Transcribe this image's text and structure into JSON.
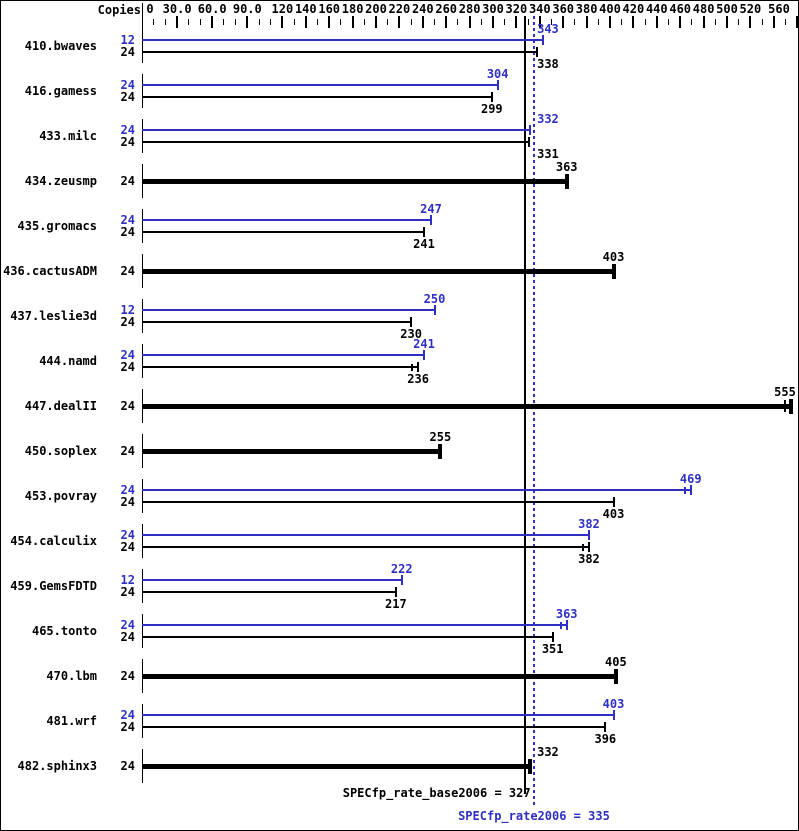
{
  "copies_header": "Copies",
  "colors": {
    "peak": "#2f2fc3",
    "base": "#000000",
    "background": "#ffffff",
    "border": "#000000"
  },
  "chart_data": {
    "type": "bar",
    "orientation": "horizontal",
    "axis": {
      "position": "top",
      "min": 0,
      "max": 560,
      "minor_tick_step": 10,
      "tick_labels": [
        {
          "v": 0,
          "text": "0"
        },
        {
          "v": 30,
          "text": "30.0"
        },
        {
          "v": 60,
          "text": "60.0"
        },
        {
          "v": 90,
          "text": "90.0"
        },
        {
          "v": 120,
          "text": "120"
        },
        {
          "v": 140,
          "text": "140"
        },
        {
          "v": 160,
          "text": "160"
        },
        {
          "v": 180,
          "text": "180"
        },
        {
          "v": 200,
          "text": "200"
        },
        {
          "v": 220,
          "text": "220"
        },
        {
          "v": 240,
          "text": "240"
        },
        {
          "v": 260,
          "text": "260"
        },
        {
          "v": 280,
          "text": "280"
        },
        {
          "v": 300,
          "text": "300"
        },
        {
          "v": 320,
          "text": "320"
        },
        {
          "v": 340,
          "text": "340"
        },
        {
          "v": 360,
          "text": "360"
        },
        {
          "v": 380,
          "text": "380"
        },
        {
          "v": 400,
          "text": "400"
        },
        {
          "v": 420,
          "text": "420"
        },
        {
          "v": 440,
          "text": "440"
        },
        {
          "v": 460,
          "text": "460"
        },
        {
          "v": 480,
          "text": "480"
        },
        {
          "v": 500,
          "text": "500"
        },
        {
          "v": 520,
          "text": "520"
        },
        {
          "v": 560,
          "text": "560"
        }
      ]
    },
    "benchmarks": [
      {
        "name": "410.bwaves",
        "bars": [
          {
            "copies": 12,
            "value": 343,
            "style": "peak"
          },
          {
            "copies": 24,
            "value": 338,
            "style": "base"
          }
        ]
      },
      {
        "name": "416.gamess",
        "bars": [
          {
            "copies": 24,
            "value": 304,
            "style": "peak"
          },
          {
            "copies": 24,
            "value": 299,
            "style": "base"
          }
        ]
      },
      {
        "name": "433.milc",
        "bars": [
          {
            "copies": 24,
            "value": 332,
            "style": "peak"
          },
          {
            "copies": 24,
            "value": 331,
            "style": "base"
          }
        ]
      },
      {
        "name": "434.zeusmp",
        "bars": [
          {
            "copies": 24,
            "value": 363,
            "style": "base_wide"
          }
        ]
      },
      {
        "name": "435.gromacs",
        "bars": [
          {
            "copies": 24,
            "value": 247,
            "style": "peak"
          },
          {
            "copies": 24,
            "value": 241,
            "style": "base"
          }
        ]
      },
      {
        "name": "436.cactusADM",
        "bars": [
          {
            "copies": 24,
            "value": 403,
            "style": "base_wide"
          }
        ]
      },
      {
        "name": "437.leslie3d",
        "bars": [
          {
            "copies": 12,
            "value": 250,
            "style": "peak"
          },
          {
            "copies": 24,
            "value": 230,
            "style": "base"
          }
        ]
      },
      {
        "name": "444.namd",
        "bars": [
          {
            "copies": 24,
            "value": 241,
            "style": "peak"
          },
          {
            "copies": 24,
            "value": 236,
            "style": "base",
            "double_tick": true
          }
        ]
      },
      {
        "name": "447.dealII",
        "bars": [
          {
            "copies": 24,
            "value": 555,
            "style": "base_wide",
            "double_tick": true
          }
        ]
      },
      {
        "name": "450.soplex",
        "bars": [
          {
            "copies": 24,
            "value": 255,
            "style": "base_wide"
          }
        ]
      },
      {
        "name": "453.povray",
        "bars": [
          {
            "copies": 24,
            "value": 469,
            "style": "peak",
            "double_tick": true
          },
          {
            "copies": 24,
            "value": 403,
            "style": "base"
          }
        ]
      },
      {
        "name": "454.calculix",
        "bars": [
          {
            "copies": 24,
            "value": 382,
            "style": "peak"
          },
          {
            "copies": 24,
            "value": 382,
            "style": "base",
            "double_tick": true
          }
        ]
      },
      {
        "name": "459.GemsFDTD",
        "bars": [
          {
            "copies": 12,
            "value": 222,
            "style": "peak"
          },
          {
            "copies": 24,
            "value": 217,
            "style": "base"
          }
        ]
      },
      {
        "name": "465.tonto",
        "bars": [
          {
            "copies": 24,
            "value": 363,
            "style": "peak",
            "double_tick": true
          },
          {
            "copies": 24,
            "value": 351,
            "style": "base"
          }
        ]
      },
      {
        "name": "470.lbm",
        "bars": [
          {
            "copies": 24,
            "value": 405,
            "style": "base_wide"
          }
        ]
      },
      {
        "name": "481.wrf",
        "bars": [
          {
            "copies": 24,
            "value": 403,
            "style": "peak"
          },
          {
            "copies": 24,
            "value": 396,
            "style": "base"
          }
        ]
      },
      {
        "name": "482.sphinx3",
        "bars": [
          {
            "copies": 24,
            "value": 332,
            "style": "base_wide"
          }
        ]
      }
    ],
    "reference_lines": [
      {
        "metric": "SPECfp_rate_base2006",
        "value": 327,
        "style": "solid",
        "color": "#000000",
        "text": "SPECfp_rate_base2006 = 327"
      },
      {
        "metric": "SPECfp_rate2006",
        "value": 335,
        "style": "dotted",
        "color": "#2f2fc3",
        "text": "SPECfp_rate2006 = 335"
      }
    ]
  }
}
